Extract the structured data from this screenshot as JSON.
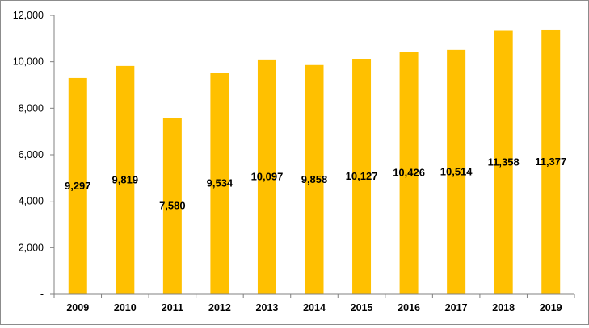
{
  "chart_data": {
    "type": "bar",
    "title": "",
    "xlabel": "",
    "ylabel": "",
    "categories": [
      "2009",
      "2010",
      "2011",
      "2012",
      "2013",
      "2014",
      "2015",
      "2016",
      "2017",
      "2018",
      "2019"
    ],
    "values": [
      9297,
      9819,
      7580,
      9534,
      10097,
      9858,
      10127,
      10426,
      10514,
      11358,
      11377
    ],
    "value_labels": [
      "9,297",
      "9,819",
      "7,580",
      "9,534",
      "10,097",
      "9,858",
      "10,127",
      "10,426",
      "10,514",
      "11,358",
      "11,377"
    ],
    "ylim": [
      0,
      12000
    ],
    "yticks": [
      0,
      2000,
      4000,
      6000,
      8000,
      10000,
      12000
    ],
    "ytick_labels": [
      "-",
      "2,000",
      "4,000",
      "6,000",
      "8,000",
      "10,000",
      "12,000"
    ],
    "bar_color": "#FFC000",
    "axis_color": "#808080",
    "grid": false,
    "legend": "none"
  }
}
